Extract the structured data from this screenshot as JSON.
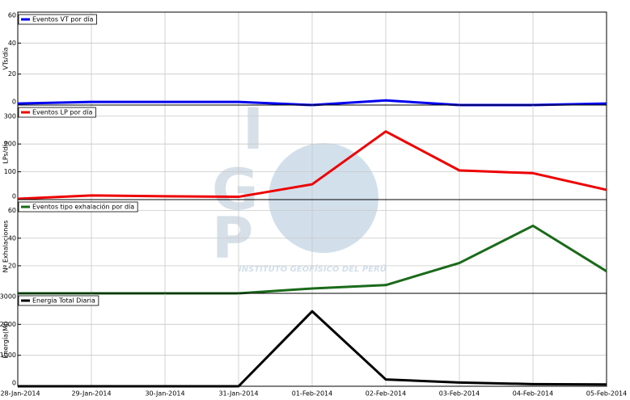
{
  "chart_data": [
    {
      "type": "line",
      "ylabel": "VTs/día",
      "ylim": [
        0,
        60
      ],
      "yticks": [
        0,
        20,
        40,
        60
      ],
      "grid": true,
      "legend": "upper left",
      "series": [
        {
          "name": "Eventos VT por día",
          "color": "#0000ee",
          "values": [
            1,
            2,
            2,
            2,
            0,
            3,
            0,
            0,
            1
          ]
        }
      ]
    },
    {
      "type": "line",
      "ylabel": "LPs/día",
      "ylim": [
        0,
        340
      ],
      "yticks": [
        0,
        100,
        200,
        300
      ],
      "grid": true,
      "legend": "upper left",
      "series": [
        {
          "name": "Eventos LP por día",
          "color": "#ee0000",
          "values": [
            3,
            15,
            12,
            10,
            55,
            245,
            105,
            95,
            35
          ]
        }
      ]
    },
    {
      "type": "line",
      "ylabel": "Nº Exhalaciones",
      "ylim": [
        0,
        68
      ],
      "yticks": [
        20,
        40,
        60
      ],
      "grid": true,
      "legend": "upper left",
      "series": [
        {
          "name": "Eventos tipo exhalación por día",
          "color": "#1a6a1a",
          "values": [
            0,
            0,
            0,
            0,
            3.5,
            6,
            22,
            49,
            16
          ]
        }
      ]
    },
    {
      "type": "line",
      "ylabel": "Energía(MJ)",
      "ylim": [
        0,
        3000
      ],
      "yticks": [
        0,
        1000,
        2000,
        3000
      ],
      "grid": true,
      "legend": "upper left",
      "categories": [
        "28-Jan-2014",
        "29-Jan-2014",
        "30-Jan-2014",
        "31-Jan-2014",
        "01-Feb-2014",
        "02-Feb-2014",
        "03-Feb-2014",
        "04-Feb-2014",
        "05-Feb-2014"
      ],
      "series": [
        {
          "name": "Energía Total Diaria",
          "color": "#000000",
          "values": [
            0,
            0,
            0,
            0,
            2420,
            220,
            120,
            70,
            60
          ]
        }
      ]
    }
  ],
  "watermark": {
    "letters": [
      "I",
      "G",
      "P"
    ],
    "text": "INSTITUTO GEOFÍSICO DEL PERÚ"
  }
}
